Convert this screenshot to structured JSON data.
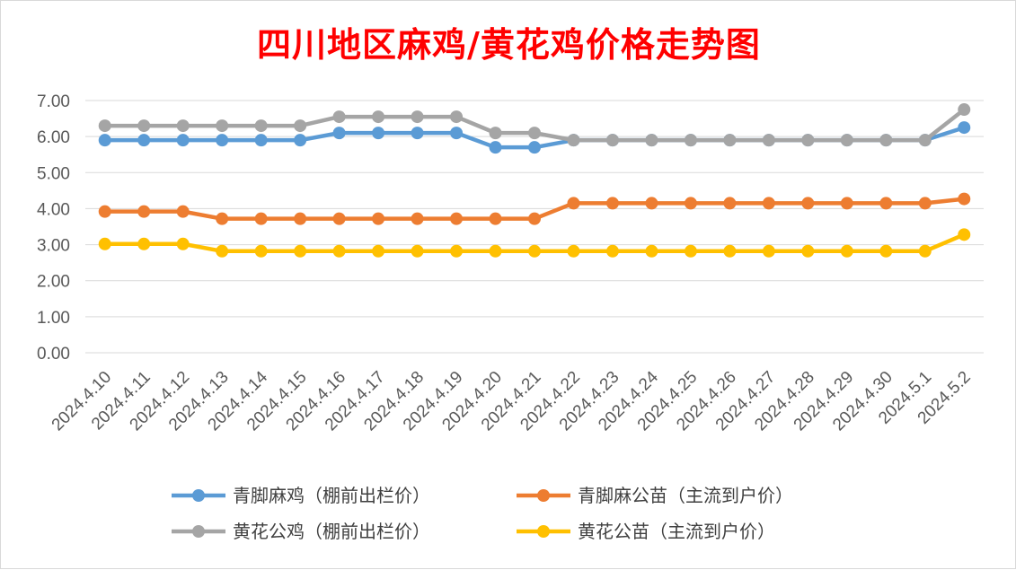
{
  "chart_data": {
    "type": "line",
    "title": "四川地区麻鸡/黄花鸡价格走势图",
    "xlabel": "",
    "ylabel": "",
    "ylim": [
      0,
      7
    ],
    "yticks": [
      "0.00",
      "1.00",
      "2.00",
      "3.00",
      "4.00",
      "5.00",
      "6.00",
      "7.00"
    ],
    "grid": true,
    "legend_position": "bottom",
    "categories": [
      "2024.4.10",
      "2024.4.11",
      "2024.4.12",
      "2024.4.13",
      "2024.4.14",
      "2024.4.15",
      "2024.4.16",
      "2024.4.17",
      "2024.4.18",
      "2024.4.19",
      "2024.4.20",
      "2024.4.21",
      "2024.4.22",
      "2024.4.23",
      "2024.4.24",
      "2024.4.25",
      "2024.4.26",
      "2024.4.27",
      "2024.4.28",
      "2024.4.29",
      "2024.4.30",
      "2024.5.1",
      "2024.5.2"
    ],
    "series": [
      {
        "name": "青脚麻鸡（棚前出栏价）",
        "color": "#5b9bd5",
        "values": [
          5.9,
          5.9,
          5.9,
          5.9,
          5.9,
          5.9,
          6.1,
          6.1,
          6.1,
          6.1,
          5.7,
          5.7,
          5.9,
          5.9,
          5.9,
          5.9,
          5.9,
          5.9,
          5.9,
          5.9,
          5.9,
          5.9,
          6.25
        ]
      },
      {
        "name": "青脚麻公苗（主流到户价）",
        "color": "#ed7d31",
        "values": [
          3.92,
          3.92,
          3.92,
          3.72,
          3.72,
          3.72,
          3.72,
          3.72,
          3.72,
          3.72,
          3.72,
          3.72,
          4.15,
          4.15,
          4.15,
          4.15,
          4.15,
          4.15,
          4.15,
          4.15,
          4.15,
          4.15,
          4.27
        ]
      },
      {
        "name": "黄花公鸡（棚前出栏价）",
        "color": "#a5a5a5",
        "values": [
          6.3,
          6.3,
          6.3,
          6.3,
          6.3,
          6.3,
          6.55,
          6.55,
          6.55,
          6.55,
          6.1,
          6.1,
          5.9,
          5.9,
          5.9,
          5.9,
          5.9,
          5.9,
          5.9,
          5.9,
          5.9,
          5.9,
          6.75
        ]
      },
      {
        "name": "黄花公苗（主流到户价）",
        "color": "#ffc000",
        "values": [
          3.02,
          3.02,
          3.02,
          2.82,
          2.82,
          2.82,
          2.82,
          2.82,
          2.82,
          2.82,
          2.82,
          2.82,
          2.82,
          2.82,
          2.82,
          2.82,
          2.82,
          2.82,
          2.82,
          2.82,
          2.82,
          2.82,
          3.28
        ]
      }
    ]
  }
}
